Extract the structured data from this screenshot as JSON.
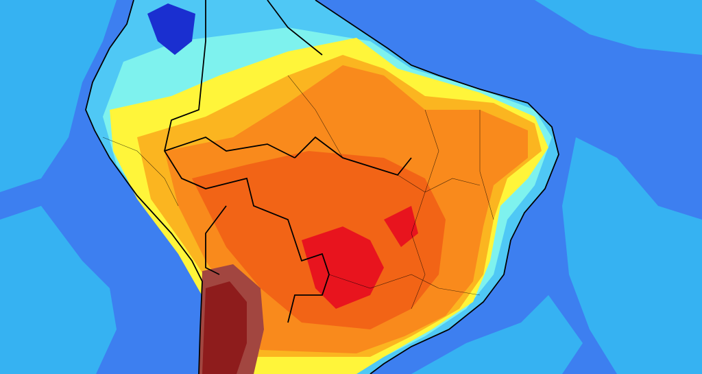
{
  "map": {
    "region": "South America",
    "palette": {
      "ocean_deep": "#3d7ff0",
      "ocean_light": "#36b2f2",
      "cyan": "#7ef2ee",
      "light_blue": "#4fc8f5",
      "dark_blue": "#1a2fd0",
      "yellow": "#fff53a",
      "light_yellow": "#fdfca0",
      "orange_light": "#fbb520",
      "orange": "#f98a1c",
      "orange_dark": "#f26416",
      "red": "#e8141e",
      "dark_red": "#8e1c1c",
      "brown": "#a24640",
      "border": "#000000"
    }
  }
}
